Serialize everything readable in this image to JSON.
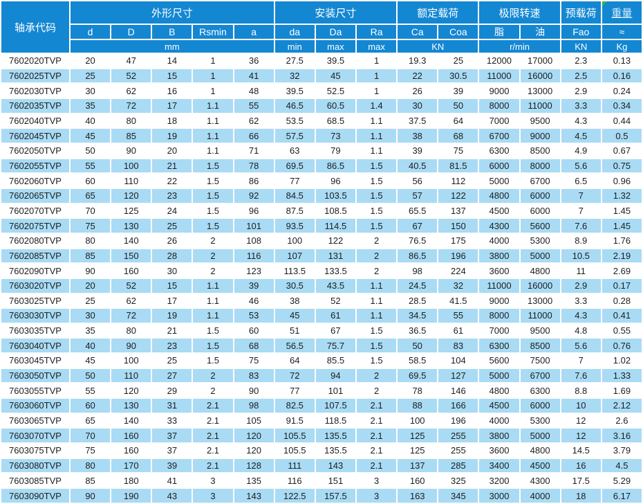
{
  "colors": {
    "header_bg": "#1487d2",
    "stripe_bg": "#a9dbf4",
    "text": "#1d1d1d",
    "header_text": "#ffffff",
    "marker_green": "#3fae49"
  },
  "table": {
    "corner_label": "轴承代码",
    "header": {
      "groups": [
        {
          "label": "外形尺寸",
          "span": 5
        },
        {
          "label": "安装尺寸",
          "span": 3
        },
        {
          "label": "额定载荷",
          "span": 2
        },
        {
          "label": "极限转速",
          "span": 2
        },
        {
          "label": "预载荷",
          "span": 1
        },
        {
          "label": "重量",
          "span": 1
        }
      ],
      "columns": [
        "d",
        "D",
        "B",
        "Rsmin",
        "a",
        "da",
        "Da",
        "Ra",
        "Ca",
        "Coa",
        "脂",
        "油",
        "Fao",
        "≈"
      ],
      "units": [
        {
          "label": "mm",
          "span": 5
        },
        {
          "label": "min",
          "span": 1
        },
        {
          "label": "max",
          "span": 1
        },
        {
          "label": "max",
          "span": 1
        },
        {
          "label": "KN",
          "span": 2
        },
        {
          "label": "r/min",
          "span": 2
        },
        {
          "label": "KN",
          "span": 1
        },
        {
          "label": "Kg",
          "span": 1
        }
      ]
    },
    "rows": [
      [
        "7602020TVP",
        "20",
        "47",
        "14",
        "1",
        "36",
        "27.5",
        "39.5",
        "1",
        "19.3",
        "25",
        "12000",
        "17000",
        "2.3",
        "0.13"
      ],
      [
        "7602025TVP",
        "25",
        "52",
        "15",
        "1",
        "41",
        "32",
        "45",
        "1",
        "22",
        "30.5",
        "11000",
        "16000",
        "2.5",
        "0.16"
      ],
      [
        "7602030TVP",
        "30",
        "62",
        "16",
        "1",
        "48",
        "39.5",
        "52.5",
        "1",
        "26",
        "39",
        "9000",
        "13000",
        "2.9",
        "0.24"
      ],
      [
        "7602035TVP",
        "35",
        "72",
        "17",
        "1.1",
        "55",
        "46.5",
        "60.5",
        "1.4",
        "30",
        "50",
        "8000",
        "11000",
        "3.3",
        "0.34"
      ],
      [
        "7602040TVP",
        "40",
        "80",
        "18",
        "1.1",
        "62",
        "53.5",
        "68.5",
        "1.1",
        "37.5",
        "64",
        "7000",
        "9500",
        "4.3",
        "0.44"
      ],
      [
        "7602045TVP",
        "45",
        "85",
        "19",
        "1.1",
        "66",
        "57.5",
        "73",
        "1.1",
        "38",
        "68",
        "6700",
        "9000",
        "4.5",
        "0.5"
      ],
      [
        "7602050TVP",
        "50",
        "90",
        "20",
        "1.1",
        "71",
        "63",
        "79",
        "1.1",
        "39",
        "75",
        "6300",
        "8500",
        "4.9",
        "0.67"
      ],
      [
        "7602055TVP",
        "55",
        "100",
        "21",
        "1.5",
        "78",
        "69.5",
        "86.5",
        "1.5",
        "40.5",
        "81.5",
        "6000",
        "8000",
        "5.6",
        "0.75"
      ],
      [
        "7602060TVP",
        "60",
        "110",
        "22",
        "1.5",
        "86",
        "77",
        "96",
        "1.5",
        "56",
        "112",
        "5000",
        "6700",
        "6.5",
        "0.96"
      ],
      [
        "7602065TVP",
        "65",
        "120",
        "23",
        "1.5",
        "92",
        "84.5",
        "103.5",
        "1.5",
        "57",
        "122",
        "4800",
        "6000",
        "7",
        "1.32"
      ],
      [
        "7602070TVP",
        "70",
        "125",
        "24",
        "1.5",
        "96",
        "87.5",
        "108.5",
        "1.5",
        "65.5",
        "137",
        "4500",
        "6000",
        "7",
        "1.45"
      ],
      [
        "7602075TVP",
        "75",
        "130",
        "25",
        "1.5",
        "101",
        "93.5",
        "114.5",
        "1.5",
        "67",
        "150",
        "4300",
        "5600",
        "7.6",
        "1.45"
      ],
      [
        "7602080TVP",
        "80",
        "140",
        "26",
        "2",
        "108",
        "100",
        "122",
        "2",
        "76.5",
        "175",
        "4000",
        "5300",
        "8.9",
        "1.76"
      ],
      [
        "7602085TVP",
        "85",
        "150",
        "28",
        "2",
        "116",
        "107",
        "131",
        "2",
        "86.5",
        "196",
        "3800",
        "5000",
        "10.5",
        "2.19"
      ],
      [
        "7602090TVP",
        "90",
        "160",
        "30",
        "2",
        "123",
        "113.5",
        "133.5",
        "2",
        "98",
        "224",
        "3600",
        "4800",
        "11",
        "2.69"
      ],
      [
        "7603020TVP",
        "20",
        "52",
        "15",
        "1.1",
        "39",
        "30.5",
        "43.5",
        "1.1",
        "24.5",
        "32",
        "11000",
        "16000",
        "2.9",
        "0.17"
      ],
      [
        "7603025TVP",
        "25",
        "62",
        "17",
        "1.1",
        "46",
        "38",
        "52",
        "1.1",
        "28.5",
        "41.5",
        "9000",
        "13000",
        "3.3",
        "0.28"
      ],
      [
        "7603030TVP",
        "30",
        "72",
        "19",
        "1.1",
        "53",
        "45",
        "61",
        "1.1",
        "34.5",
        "55",
        "8000",
        "11000",
        "4.3",
        "0.41"
      ],
      [
        "7603035TVP",
        "35",
        "80",
        "21",
        "1.5",
        "60",
        "51",
        "67",
        "1.5",
        "36.5",
        "61",
        "7000",
        "9500",
        "4.8",
        "0.55"
      ],
      [
        "7603040TVP",
        "40",
        "90",
        "23",
        "1.5",
        "68",
        "56.5",
        "75.7",
        "1.5",
        "50",
        "83",
        "6300",
        "8500",
        "5.6",
        "0.76"
      ],
      [
        "7603045TVP",
        "45",
        "100",
        "25",
        "1.5",
        "75",
        "64",
        "85.5",
        "1.5",
        "58.5",
        "104",
        "5600",
        "7500",
        "7",
        "1.02"
      ],
      [
        "7603050TVP",
        "50",
        "110",
        "27",
        "2",
        "83",
        "72",
        "94",
        "2",
        "69.5",
        "127",
        "5000",
        "6700",
        "7.6",
        "1.33"
      ],
      [
        "7603055TVP",
        "55",
        "120",
        "29",
        "2",
        "90",
        "77",
        "101",
        "2",
        "78",
        "146",
        "4800",
        "6300",
        "8.8",
        "1.69"
      ],
      [
        "7603060TVP",
        "60",
        "130",
        "31",
        "2.1",
        "98",
        "82.5",
        "107.5",
        "2.1",
        "88",
        "166",
        "4500",
        "6000",
        "10",
        "2.12"
      ],
      [
        "7603065TVP",
        "65",
        "140",
        "33",
        "2.1",
        "105",
        "91.5",
        "118.5",
        "2.1",
        "100",
        "196",
        "4000",
        "5300",
        "12",
        "2.6"
      ],
      [
        "7603070TVP",
        "70",
        "160",
        "37",
        "2.1",
        "120",
        "105.5",
        "135.5",
        "2.1",
        "125",
        "255",
        "3800",
        "5000",
        "12",
        "3.16"
      ],
      [
        "7603075TVP",
        "75",
        "160",
        "37",
        "2.1",
        "120",
        "105.5",
        "135.5",
        "2.1",
        "125",
        "255",
        "3600",
        "4800",
        "14.5",
        "3.79"
      ],
      [
        "7603080TVP",
        "80",
        "170",
        "39",
        "2.1",
        "128",
        "111",
        "143",
        "2.1",
        "137",
        "285",
        "3400",
        "4500",
        "16",
        "4.5"
      ],
      [
        "7603085TVP",
        "85",
        "180",
        "41",
        "3",
        "135",
        "116",
        "151",
        "3",
        "160",
        "325",
        "3200",
        "4300",
        "17.5",
        "5.29"
      ],
      [
        "7603090TVP",
        "90",
        "190",
        "43",
        "3",
        "143",
        "122.5",
        "157.5",
        "3",
        "163",
        "345",
        "3000",
        "4000",
        "18",
        "6.17"
      ]
    ]
  }
}
